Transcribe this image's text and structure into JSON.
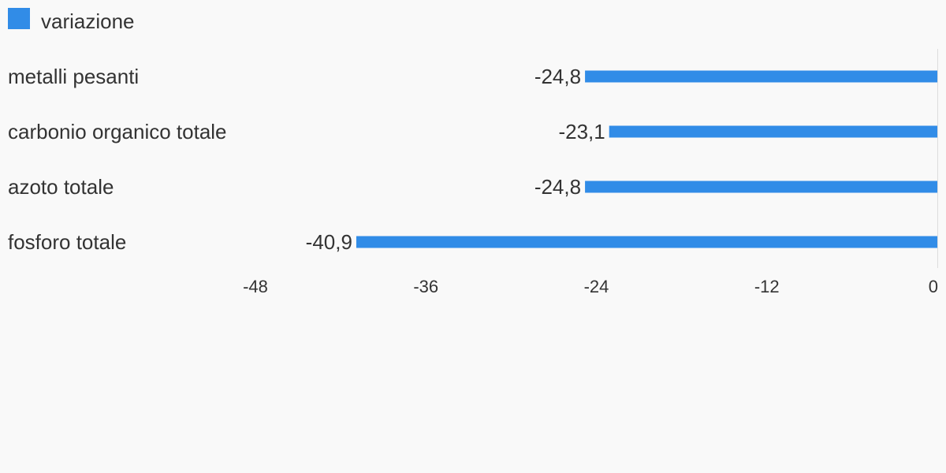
{
  "legend": {
    "label": "variazione"
  },
  "chart_data": {
    "type": "bar",
    "orientation": "horizontal",
    "categories": [
      "metalli pesanti",
      "carbonio organico totale",
      "azoto totale",
      "fosforo totale"
    ],
    "series": [
      {
        "name": "variazione",
        "values": [
          -24.8,
          -23.1,
          -24.8,
          -40.9
        ],
        "value_labels": [
          "-24,8",
          "-23,1",
          "-24,8",
          "-40,9"
        ],
        "color": "#318ce7"
      }
    ],
    "x_ticks": [
      -48,
      -36,
      -24,
      -12,
      0
    ],
    "x_tick_labels": [
      "-48",
      "-36",
      "-24",
      "-12",
      "0"
    ],
    "xlim": [
      -48,
      0
    ],
    "grid": false,
    "legend_position": "top-left"
  }
}
